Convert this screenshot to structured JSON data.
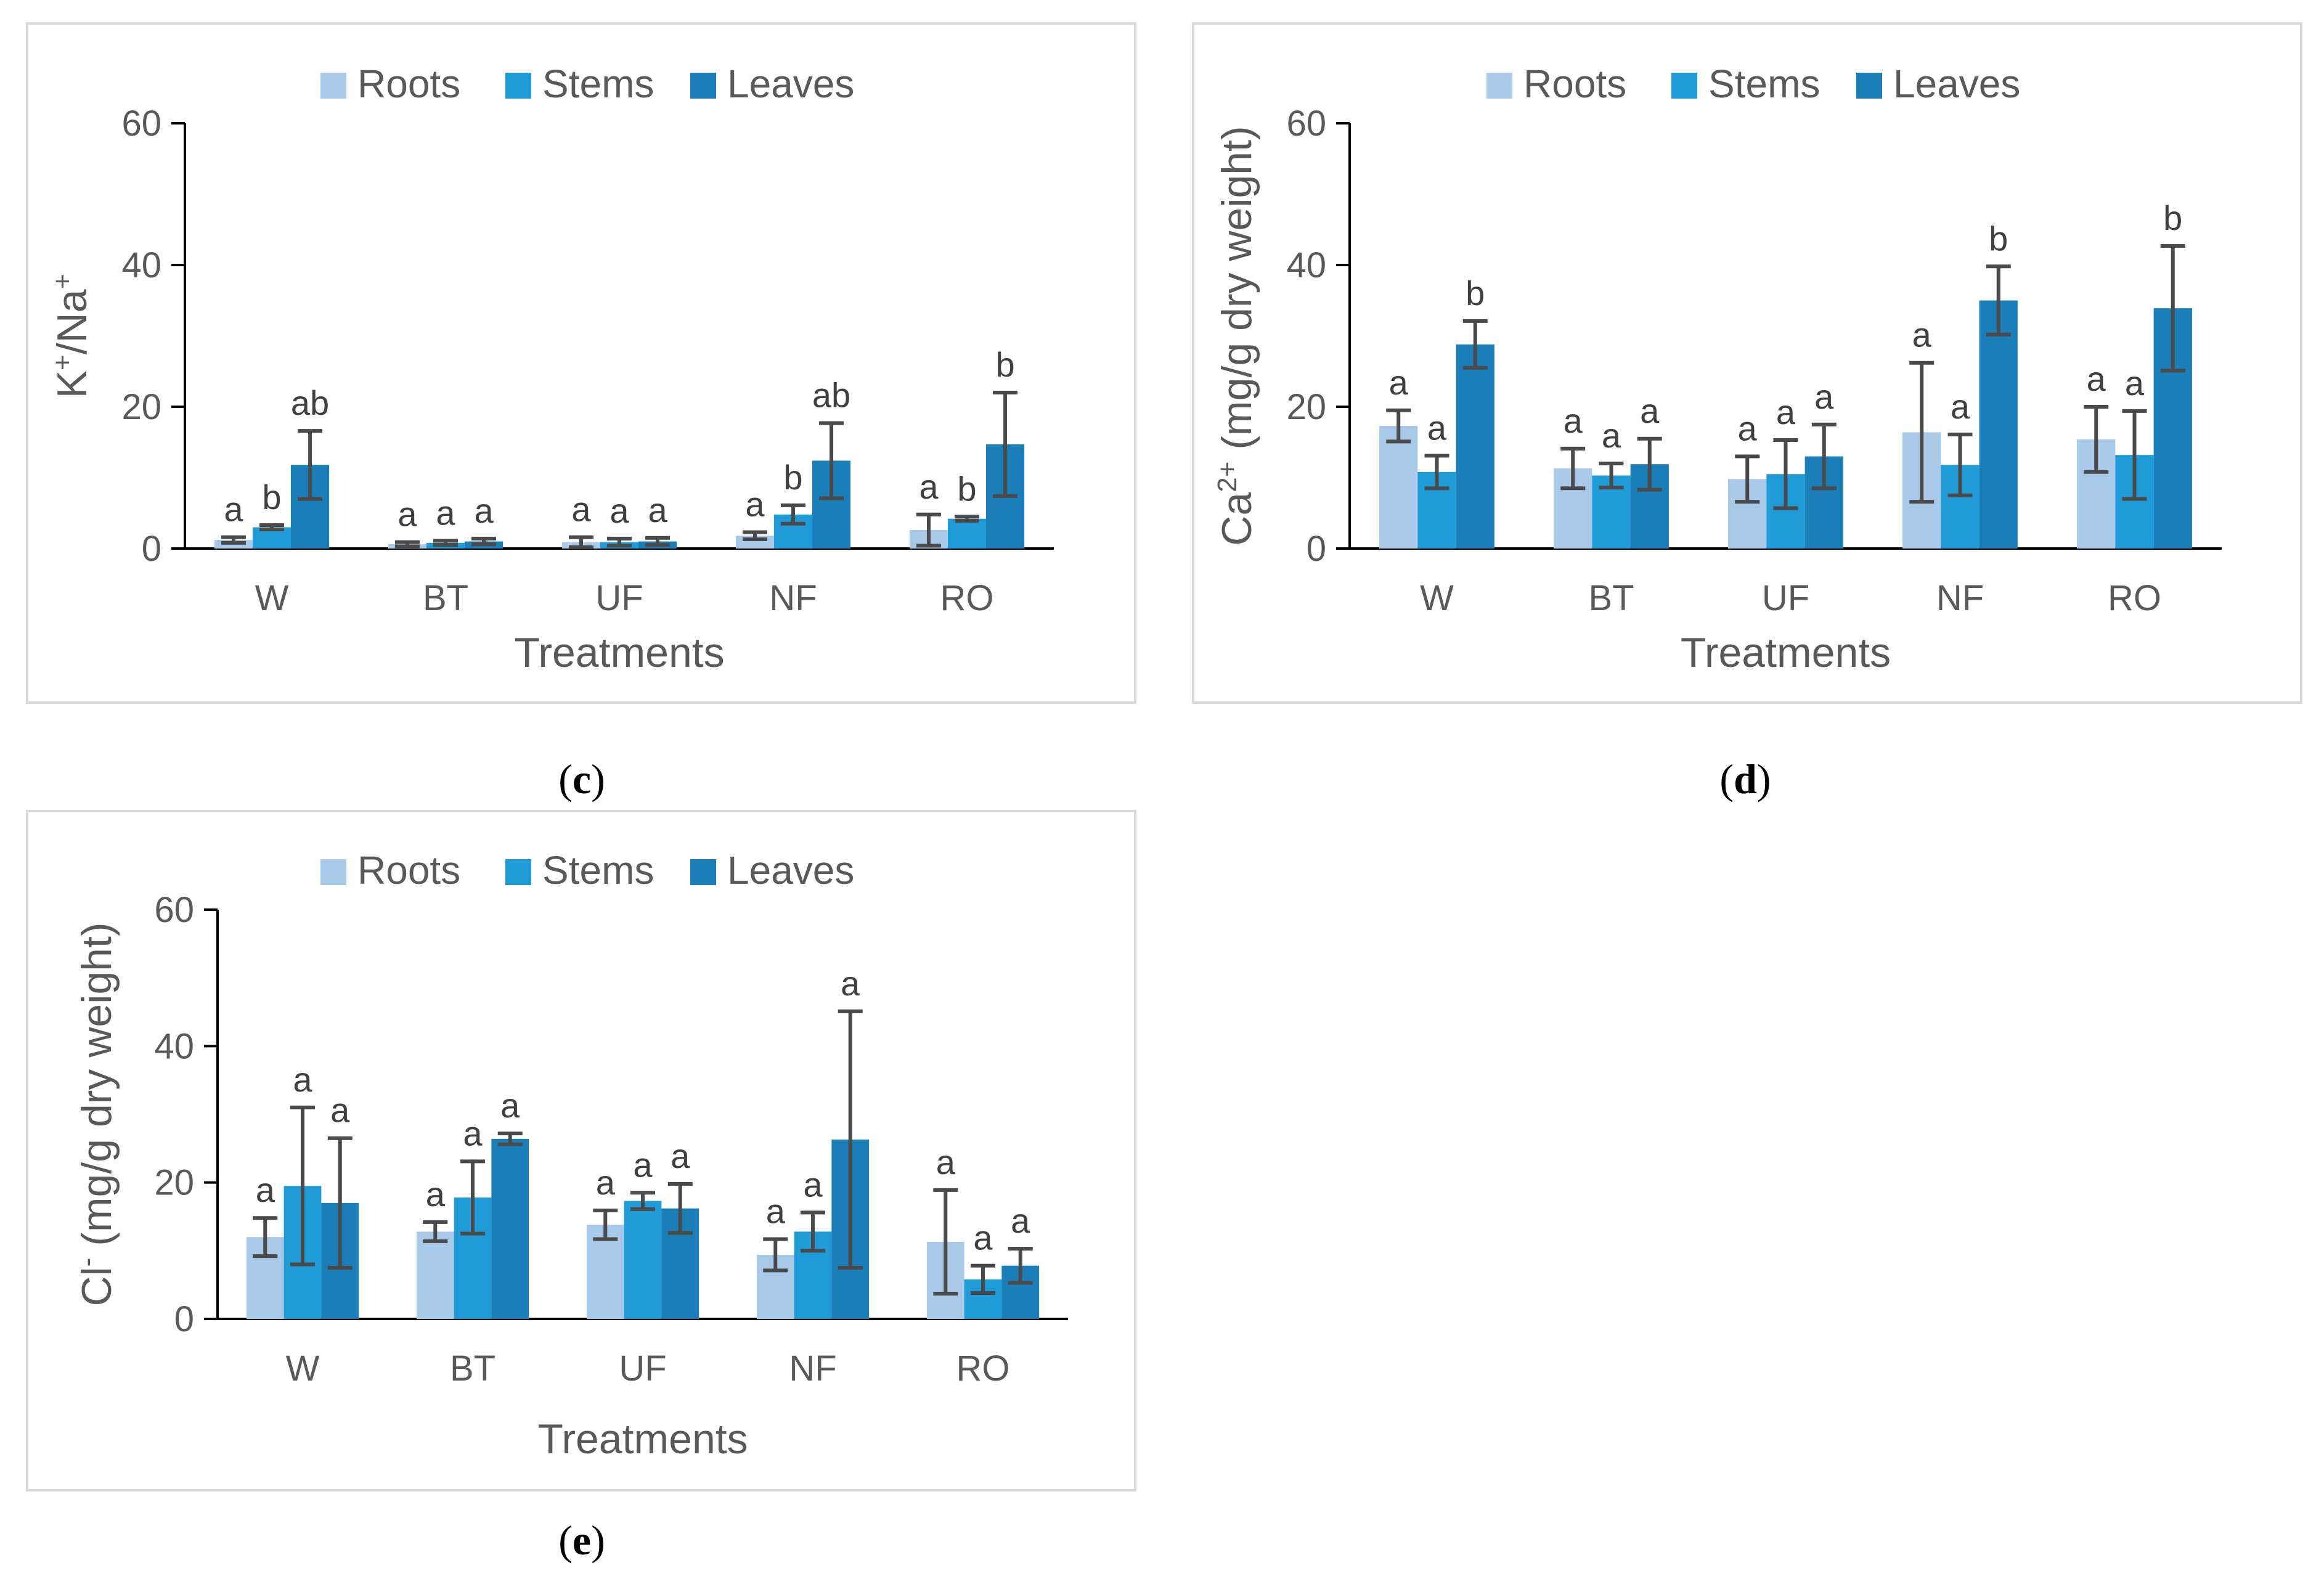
{
  "colors": {
    "roots": "#a9c9e8",
    "stems": "#1f9bd7",
    "leaves": "#1a7fb8",
    "error_bar": "#4a4a4a",
    "axis": "#000000",
    "frame": "#d9d9d9",
    "text": "#595959"
  },
  "chart_data": [
    {
      "id": "c",
      "type": "bar",
      "caption": "(c)",
      "caption_letter": "c",
      "categories": [
        "W",
        "BT",
        "UF",
        "NF",
        "RO"
      ],
      "xlabel": "Treatments",
      "ylabel_main": "K",
      "ylabel_sup1": "+",
      "ylabel_mid": "/Na",
      "ylabel_sup2": "+",
      "ylabel_tail": "",
      "ylim": [
        0,
        60
      ],
      "yticks": [
        "0",
        "20",
        "40",
        "60"
      ],
      "legend_position": "top",
      "series": [
        {
          "name": "Roots",
          "values": [
            1.2,
            0.6,
            0.9,
            1.8,
            2.6
          ],
          "errors": [
            0.4,
            0.3,
            0.7,
            0.5,
            2.2
          ],
          "labels": [
            "a",
            "a",
            "a",
            "a",
            "a"
          ]
        },
        {
          "name": "Stems",
          "values": [
            3.0,
            0.8,
            0.9,
            4.8,
            4.2
          ],
          "errors": [
            0.3,
            0.3,
            0.5,
            1.3,
            0.3
          ],
          "labels": [
            "b",
            "a",
            "a",
            "b",
            "b"
          ]
        },
        {
          "name": "Leaves",
          "values": [
            11.8,
            1.0,
            1.0,
            12.4,
            14.7
          ],
          "errors": [
            4.8,
            0.4,
            0.5,
            5.3,
            7.3
          ],
          "labels": [
            "ab",
            "a",
            "a",
            "ab",
            "b"
          ]
        }
      ]
    },
    {
      "id": "d",
      "type": "bar",
      "caption": "(d)",
      "caption_letter": "d",
      "categories": [
        "W",
        "BT",
        "UF",
        "NF",
        "RO"
      ],
      "xlabel": "Treatments",
      "ylabel_main": "Ca",
      "ylabel_sup1": "2+",
      "ylabel_mid": " (mg/g dry weight)",
      "ylabel_sup2": "",
      "ylabel_tail": "",
      "ylim": [
        0,
        60
      ],
      "yticks": [
        "0",
        "20",
        "40",
        "60"
      ],
      "legend_position": "top",
      "series": [
        {
          "name": "Roots",
          "values": [
            17.3,
            11.3,
            9.8,
            16.4,
            15.4
          ],
          "errors": [
            2.2,
            2.8,
            3.2,
            9.8,
            4.6
          ],
          "labels": [
            "a",
            "a",
            "a",
            "a",
            "a"
          ]
        },
        {
          "name": "Stems",
          "values": [
            10.8,
            10.3,
            10.5,
            11.8,
            13.2
          ],
          "errors": [
            2.3,
            1.7,
            4.8,
            4.3,
            6.2
          ],
          "labels": [
            "a",
            "a",
            "a",
            "a",
            "a"
          ]
        },
        {
          "name": "Leaves",
          "values": [
            28.8,
            11.9,
            13.0,
            35.0,
            33.9
          ],
          "errors": [
            3.3,
            3.6,
            4.5,
            4.8,
            8.8
          ],
          "labels": [
            "b",
            "a",
            "a",
            "b",
            "b"
          ]
        }
      ]
    },
    {
      "id": "e",
      "type": "bar",
      "caption": "(e)",
      "caption_letter": "e",
      "categories": [
        "W",
        "BT",
        "UF",
        "NF",
        "RO"
      ],
      "xlabel": "Treatments",
      "ylabel_main": "Cl",
      "ylabel_sup1": "-",
      "ylabel_mid": " (mg/g dry weight)",
      "ylabel_sup2": "",
      "ylabel_tail": "",
      "ylim": [
        0,
        60
      ],
      "yticks": [
        "0",
        "20",
        "40",
        "60"
      ],
      "legend_position": "top",
      "series": [
        {
          "name": "Roots",
          "values": [
            12.0,
            12.8,
            13.8,
            9.4,
            11.3
          ],
          "errors": [
            2.8,
            1.4,
            2.1,
            2.3,
            7.6
          ],
          "labels": [
            "a",
            "a",
            "a",
            "a",
            "a"
          ]
        },
        {
          "name": "Stems",
          "values": [
            19.5,
            17.8,
            17.3,
            12.8,
            5.8
          ],
          "errors": [
            11.5,
            5.3,
            1.2,
            2.8,
            2.0
          ],
          "labels": [
            "a",
            "a",
            "a",
            "a",
            "a"
          ]
        },
        {
          "name": "Leaves",
          "values": [
            17.0,
            26.4,
            16.2,
            26.3,
            7.8
          ],
          "errors": [
            9.5,
            0.8,
            3.6,
            18.8,
            2.5
          ],
          "labels": [
            "a",
            "a",
            "a",
            "a",
            "a"
          ]
        }
      ]
    }
  ]
}
